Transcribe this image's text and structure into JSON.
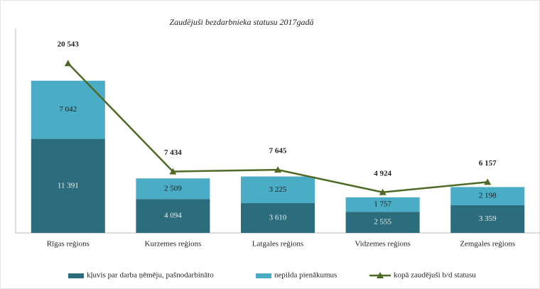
{
  "chart_data": {
    "type": "stacked-bar-line",
    "title": "Zaudējuši bezdarbnieka statusu 2017gadā",
    "categories": [
      "Rīgas reģions",
      "Kurzemes reģions",
      "Latgales reģions",
      "Vidzemes reģions",
      "Zemgales reģions"
    ],
    "series": [
      {
        "name": "kļuvis par darba ņēmēju, pašnodarbināto",
        "color": "#2b6c7d",
        "type": "bar",
        "values": [
          11391,
          4094,
          3610,
          2555,
          3359
        ],
        "value_labels": [
          "11 391",
          "4 094",
          "3 610",
          "2 555",
          "3 359"
        ]
      },
      {
        "name": "nepilda pienākumus",
        "color": "#4bacc6",
        "type": "bar",
        "values": [
          7042,
          2509,
          3225,
          1757,
          2198
        ],
        "value_labels": [
          "7 042",
          "2 509",
          "3 225",
          "1 757",
          "2 198"
        ]
      },
      {
        "name": "kopā zaudējuši b/d statusu",
        "color": "#4f6a26",
        "type": "line",
        "values": [
          20543,
          7434,
          7645,
          4924,
          6157
        ],
        "value_labels": [
          "20 543",
          "7 434",
          "7 645",
          "4 924",
          "6 157"
        ]
      }
    ],
    "ylim": [
      0,
      24000
    ]
  }
}
